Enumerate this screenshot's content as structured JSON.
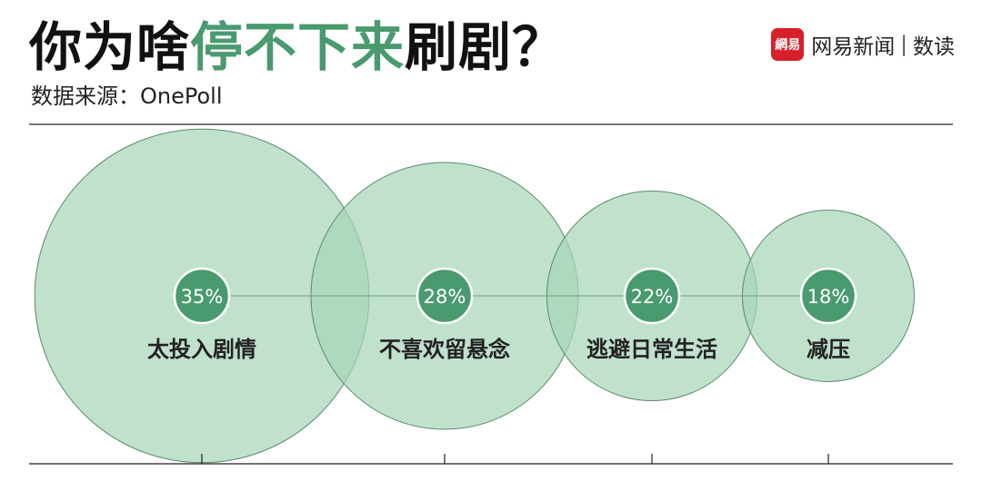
{
  "header": {
    "title_prefix": "你为啥",
    "title_highlight": "停不下来",
    "title_suffix": "刷剧？",
    "source": "数据来源：OnePoll"
  },
  "brand": {
    "logo_text": "網易",
    "name": "网易新闻",
    "separator": "|",
    "section": "数读"
  },
  "colors": {
    "bubble_fill": "#a8d5b8",
    "bubble_stroke": "#5b8a6c",
    "badge": "#4a9a6f",
    "title_highlight": "#4a9a6f"
  },
  "chart_data": {
    "type": "bubble",
    "title": "你为啥停不下来刷剧？",
    "categories": [
      "太投入剧情",
      "不喜欢留悬念",
      "逃避日常生活",
      "减压"
    ],
    "values": [
      35,
      28,
      22,
      18
    ],
    "labels": [
      "35%",
      "28%",
      "22%",
      "18%"
    ],
    "unit": "%",
    "xlabel": "",
    "ylabel": ""
  }
}
